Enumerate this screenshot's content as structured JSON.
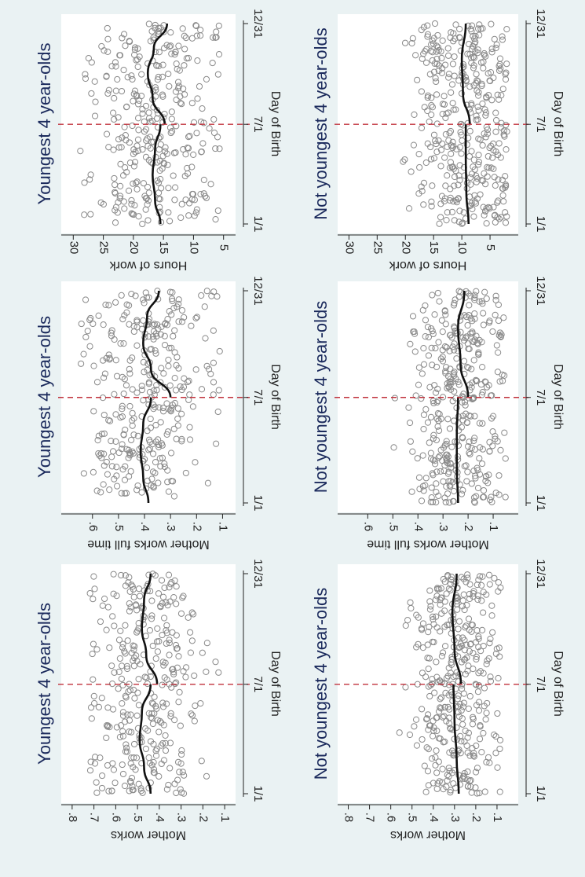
{
  "colors": {
    "background": "#eaf2f3",
    "plot_background": "#ffffff",
    "title": "#1b2a5c",
    "points": "#8a8a8a",
    "fit_line": "#111111",
    "cutoff_line": "#c0303b",
    "text": "#222222"
  },
  "figure": {
    "orientation": "rotated 90 degrees clockwise"
  },
  "chart_data": [
    {
      "type": "scatter",
      "title": "Youngest 4 year-olds",
      "xlabel": "Day of Birth",
      "ylabel": "Mother works",
      "x_ticks": [
        "1/1",
        "7/1",
        "12/31"
      ],
      "y_ticks": [
        ".1",
        ".2",
        ".3",
        ".4",
        ".5",
        ".6",
        ".7",
        ".8"
      ],
      "xlim": [
        1,
        365
      ],
      "ylim": [
        0.05,
        0.85
      ],
      "cutoff": 182,
      "grid": false,
      "n_points": 330,
      "point_ymin": 0.12,
      "point_ymax": 0.72,
      "point_spread": 0.13,
      "fit_left": [
        [
          1,
          0.44
        ],
        [
          45,
          0.47
        ],
        [
          90,
          0.49
        ],
        [
          135,
          0.48
        ],
        [
          182,
          0.44
        ]
      ],
      "fit_right": [
        [
          182,
          0.41
        ],
        [
          230,
          0.46
        ],
        [
          275,
          0.48
        ],
        [
          320,
          0.47
        ],
        [
          365,
          0.44
        ]
      ]
    },
    {
      "type": "scatter",
      "title": "Youngest 4 year-olds",
      "xlabel": "Day of Birth",
      "ylabel": "Mother works full time",
      "x_ticks": [
        "1/1",
        "7/1",
        "12/31"
      ],
      "y_ticks": [
        ".1",
        ".2",
        ".3",
        ".4",
        ".5",
        ".6"
      ],
      "xlim": [
        1,
        365
      ],
      "ylim": [
        0.05,
        0.72
      ],
      "cutoff": 182,
      "grid": false,
      "n_points": 330,
      "point_ymin": 0.11,
      "point_ymax": 0.65,
      "point_spread": 0.12,
      "fit_left": [
        [
          1,
          0.385
        ],
        [
          45,
          0.405
        ],
        [
          90,
          0.415
        ],
        [
          135,
          0.405
        ],
        [
          182,
          0.375
        ]
      ],
      "fit_right": [
        [
          182,
          0.3
        ],
        [
          230,
          0.375
        ],
        [
          275,
          0.405
        ],
        [
          320,
          0.39
        ],
        [
          365,
          0.345
        ]
      ]
    },
    {
      "type": "scatter",
      "title": "Youngest 4 year-olds",
      "xlabel": "Day of Birth",
      "ylabel": "Hours of work",
      "x_ticks": [
        "1/1",
        "7/1",
        "12/31"
      ],
      "y_ticks": [
        "5",
        "10",
        "15",
        "20",
        "25",
        "30"
      ],
      "xlim": [
        1,
        365
      ],
      "ylim": [
        3,
        32
      ],
      "cutoff": 182,
      "grid": false,
      "n_points": 330,
      "point_ymin": 5.5,
      "point_ymax": 29,
      "point_spread": 5.5,
      "fit_left": [
        [
          1,
          15.5
        ],
        [
          45,
          16.4
        ],
        [
          90,
          16.8
        ],
        [
          135,
          16.4
        ],
        [
          182,
          15.5
        ]
      ],
      "fit_right": [
        [
          182,
          14.8
        ],
        [
          230,
          16.8
        ],
        [
          275,
          17.6
        ],
        [
          320,
          16.6
        ],
        [
          365,
          14.4
        ]
      ]
    },
    {
      "type": "scatter",
      "title": "Not youngest 4 year-olds",
      "xlabel": "Day of Birth",
      "ylabel": "Mother works",
      "x_ticks": [
        "1/1",
        "7/1",
        "12/31"
      ],
      "y_ticks": [
        ".1",
        ".2",
        ".3",
        ".4",
        ".5",
        ".6",
        ".7",
        ".8"
      ],
      "xlim": [
        1,
        365
      ],
      "ylim": [
        0.0,
        0.85
      ],
      "cutoff": 182,
      "grid": false,
      "n_points": 380,
      "point_ymin": 0.08,
      "point_ymax": 0.72,
      "point_spread": 0.1,
      "fit_left": [
        [
          1,
          0.28
        ],
        [
          60,
          0.29
        ],
        [
          120,
          0.3
        ],
        [
          182,
          0.305
        ]
      ],
      "fit_right": [
        [
          182,
          0.27
        ],
        [
          240,
          0.3
        ],
        [
          300,
          0.31
        ],
        [
          365,
          0.29
        ]
      ]
    },
    {
      "type": "scatter",
      "title": "Not youngest 4 year-olds",
      "xlabel": "Day of Birth",
      "ylabel": "Mother works full time",
      "x_ticks": [
        "1/1",
        "7/1",
        "12/31"
      ],
      "y_ticks": [
        ".1",
        ".2",
        ".3",
        ".4",
        ".5",
        ".6"
      ],
      "xlim": [
        1,
        365
      ],
      "ylim": [
        0.0,
        0.72
      ],
      "cutoff": 182,
      "grid": false,
      "n_points": 380,
      "point_ymin": 0.05,
      "point_ymax": 0.6,
      "point_spread": 0.09,
      "fit_left": [
        [
          1,
          0.24
        ],
        [
          60,
          0.245
        ],
        [
          120,
          0.245
        ],
        [
          182,
          0.24
        ]
      ],
      "fit_right": [
        [
          182,
          0.2
        ],
        [
          240,
          0.23
        ],
        [
          300,
          0.24
        ],
        [
          365,
          0.215
        ]
      ]
    },
    {
      "type": "scatter",
      "title": "Not youngest 4 year-olds",
      "xlabel": "Day of Birth",
      "ylabel": "Hours of work",
      "x_ticks": [
        "1/1",
        "7/1",
        "12/31"
      ],
      "y_ticks": [
        "5",
        "10",
        "15",
        "20",
        "25",
        "30"
      ],
      "xlim": [
        1,
        365
      ],
      "ylim": [
        0,
        32
      ],
      "cutoff": 182,
      "grid": false,
      "n_points": 380,
      "point_ymin": 2,
      "point_ymax": 26,
      "point_spread": 4.5,
      "fit_left": [
        [
          1,
          8.8
        ],
        [
          60,
          9.2
        ],
        [
          120,
          9.3
        ],
        [
          182,
          9.3
        ]
      ],
      "fit_right": [
        [
          182,
          8.6
        ],
        [
          240,
          9.8
        ],
        [
          300,
          10.0
        ],
        [
          365,
          9.3
        ]
      ]
    }
  ]
}
